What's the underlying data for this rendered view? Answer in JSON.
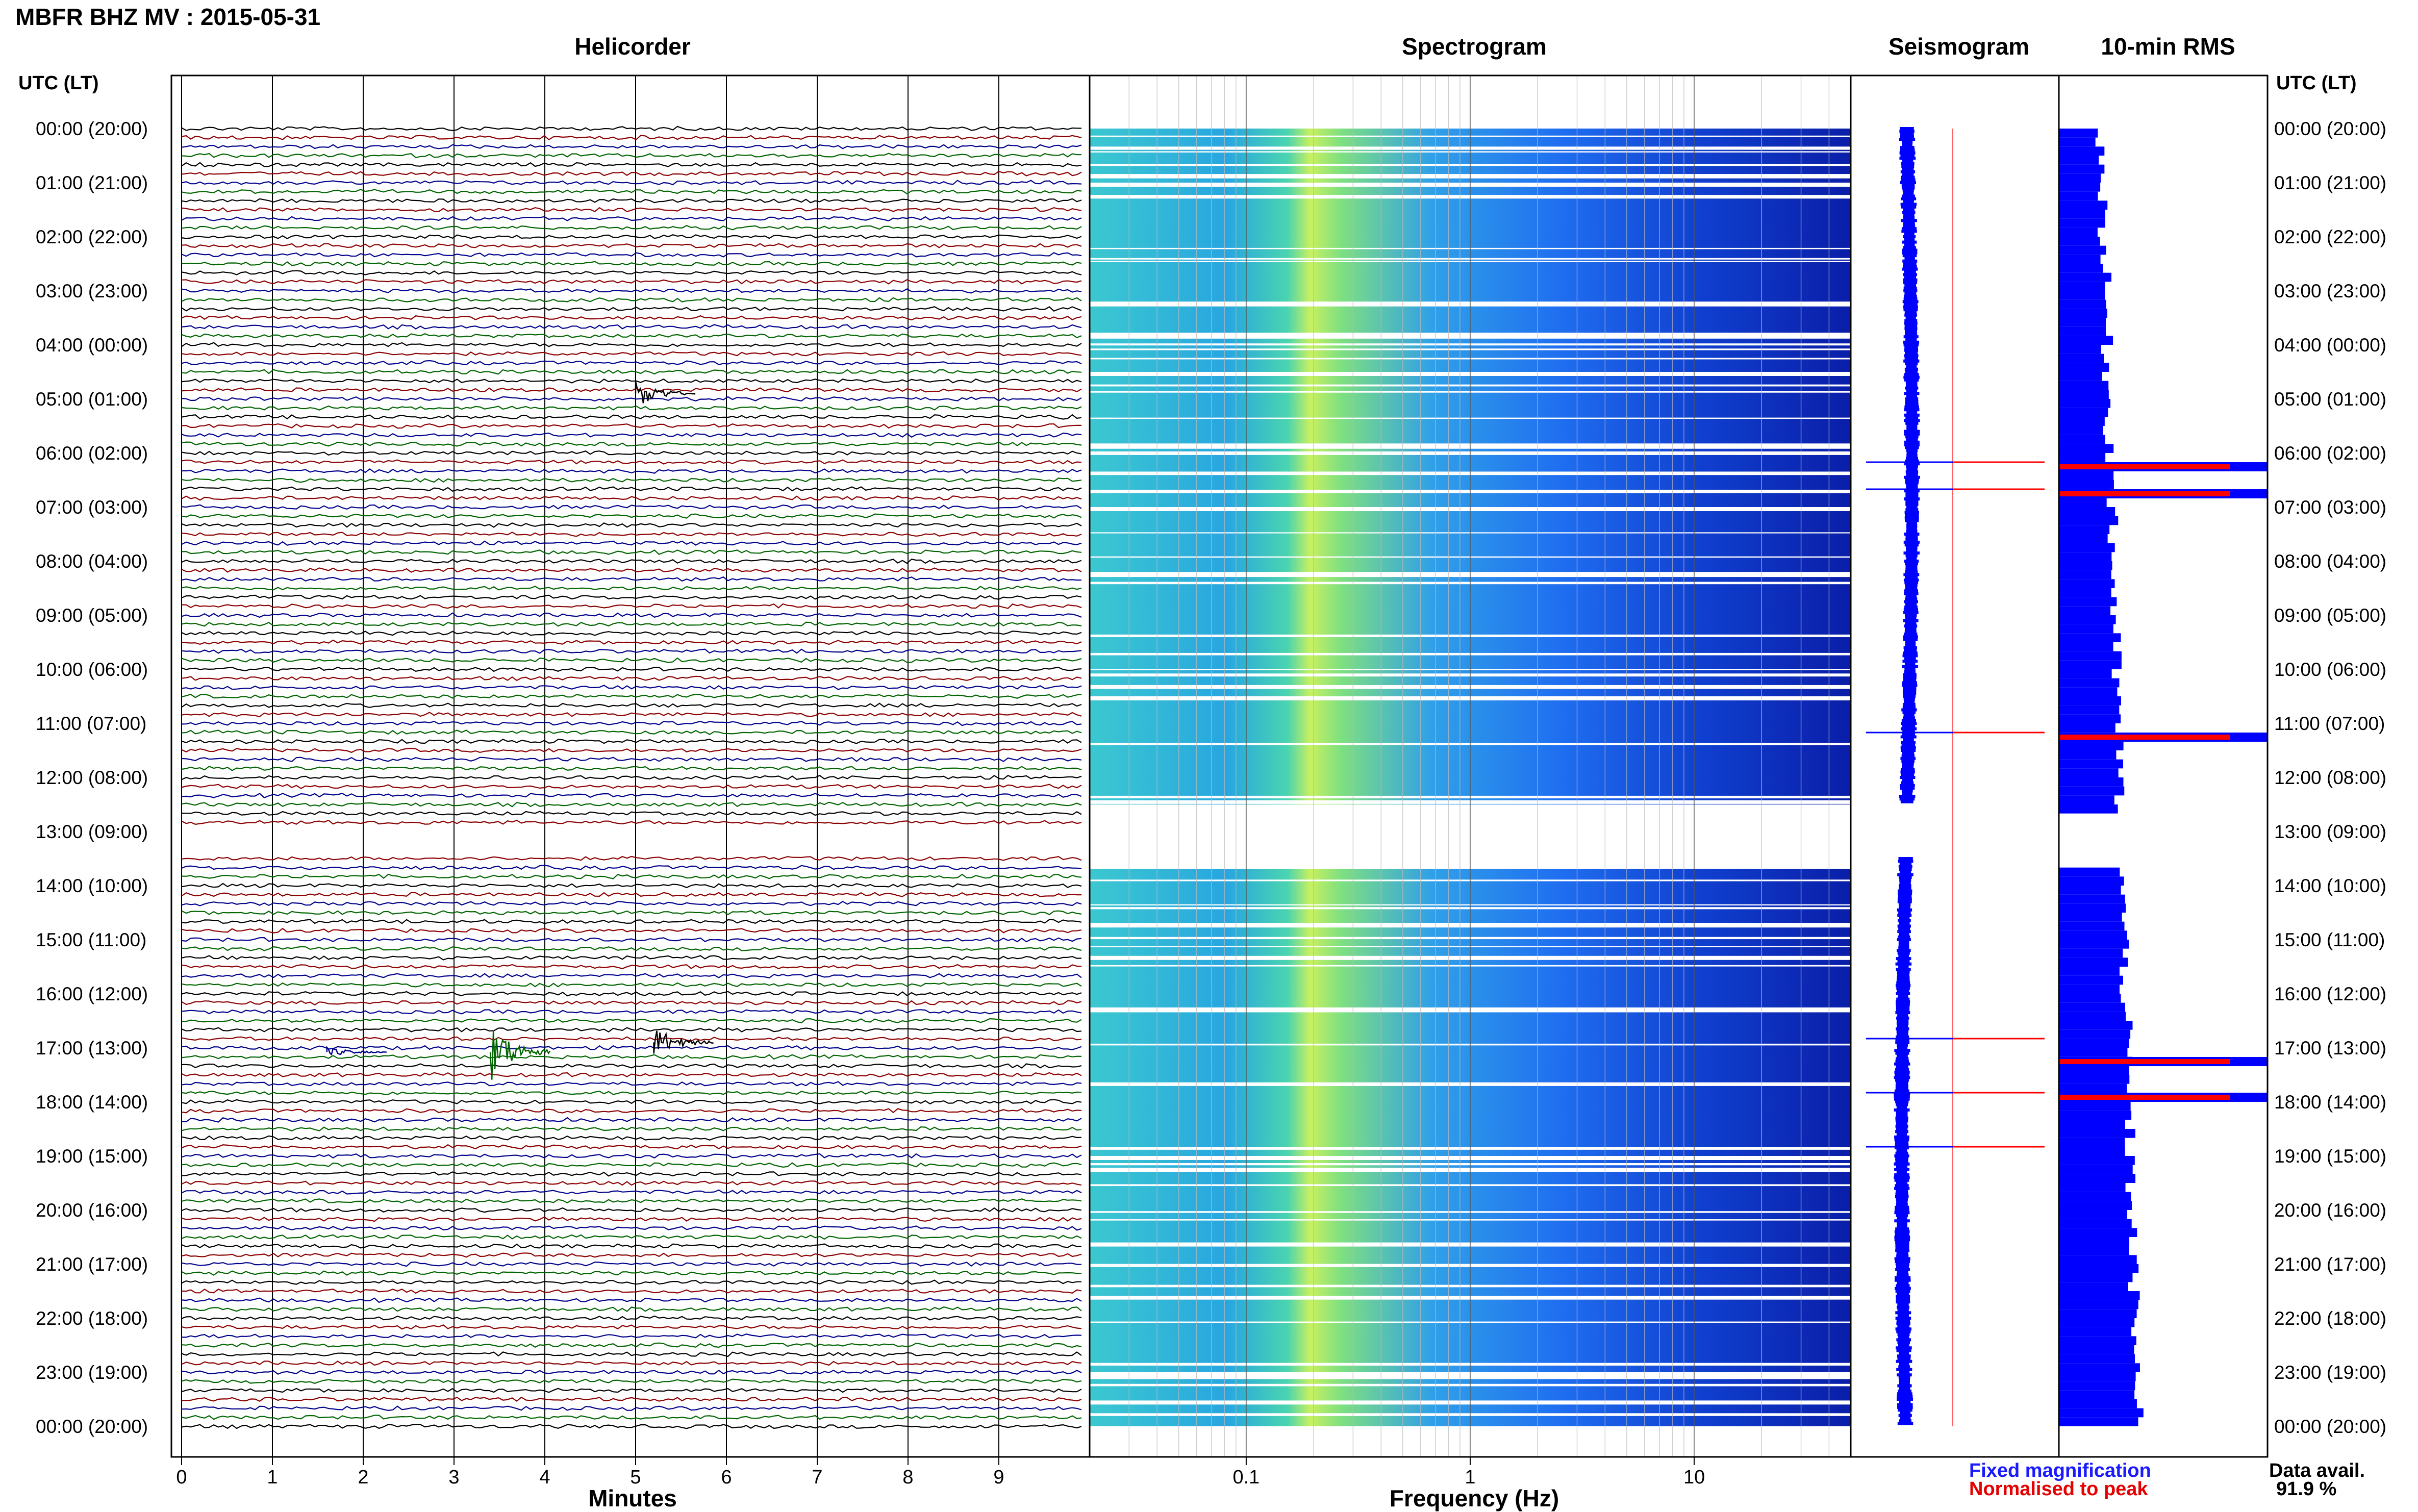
{
  "header": {
    "station_title": "MBFR BHZ MV : 2015-05-31",
    "utc_header_left": "UTC (LT)",
    "utc_header_right": "UTC (LT)"
  },
  "panels": {
    "helicorder": "Helicorder",
    "spectrogram": "Spectrogram",
    "seismogram": "Seismogram",
    "rms": "10-min RMS"
  },
  "time_labels": [
    "00:00 (20:00)",
    "01:00 (21:00)",
    "02:00 (22:00)",
    "03:00 (23:00)",
    "04:00 (00:00)",
    "05:00 (01:00)",
    "06:00 (02:00)",
    "07:00 (03:00)",
    "08:00 (04:00)",
    "09:00 (05:00)",
    "10:00 (06:00)",
    "11:00 (07:00)",
    "12:00 (08:00)",
    "13:00 (09:00)",
    "14:00 (10:00)",
    "15:00 (11:00)",
    "16:00 (12:00)",
    "17:00 (13:00)",
    "18:00 (14:00)",
    "19:00 (15:00)",
    "20:00 (16:00)",
    "21:00 (17:00)",
    "22:00 (18:00)",
    "23:00 (19:00)",
    "00:00 (20:00)"
  ],
  "footer": {
    "legend_fixed": "Fixed magnification",
    "legend_normalised": "Normalised to peak",
    "data_avail_label": "Data avail.",
    "data_avail_value": "91.9 %"
  },
  "colors": {
    "trace_black": "#000000",
    "trace_red": "#8b0000",
    "trace_blue": "#00008b",
    "trace_green": "#006400",
    "rms_fixed": "#0000ff",
    "rms_normalised": "#ff0000"
  },
  "chart_data": [
    {
      "type": "line",
      "name": "helicorder",
      "title": "Helicorder",
      "xlabel": "Minutes",
      "x_ticks": [
        0,
        1,
        2,
        3,
        4,
        5,
        6,
        7,
        8,
        9
      ],
      "xlim": [
        0,
        10
      ],
      "rows_per_hour": 6,
      "trace_color_cycle": [
        "trace_black",
        "trace_red",
        "trace_blue",
        "trace_green"
      ],
      "data_gap_hours": [
        13.0,
        13.5
      ]
    },
    {
      "type": "heatmap",
      "name": "spectrogram",
      "title": "Spectrogram",
      "xlabel": "Frequency (Hz)",
      "x_scale": "log",
      "xlim": [
        0.02,
        50
      ],
      "x_ticks": [
        0.1,
        1,
        10
      ],
      "x_tick_labels": [
        "0.1",
        "1",
        "10"
      ],
      "data_gap_hours": [
        12.5,
        13.5
      ]
    },
    {
      "type": "line",
      "name": "seismogram",
      "title": "Seismogram",
      "events_hours": [
        6.17,
        6.67,
        11.17,
        16.83,
        17.83,
        18.83
      ]
    },
    {
      "type": "bar",
      "name": "rms",
      "title": "10-min RMS",
      "orientation": "horizontal",
      "series": [
        {
          "name": "Fixed magnification",
          "color": "rms_fixed"
        },
        {
          "name": "Normalised to peak",
          "color": "rms_normalised"
        }
      ],
      "peak_hours": [
        6.17,
        6.67,
        11.17,
        17.17,
        17.83
      ]
    }
  ]
}
